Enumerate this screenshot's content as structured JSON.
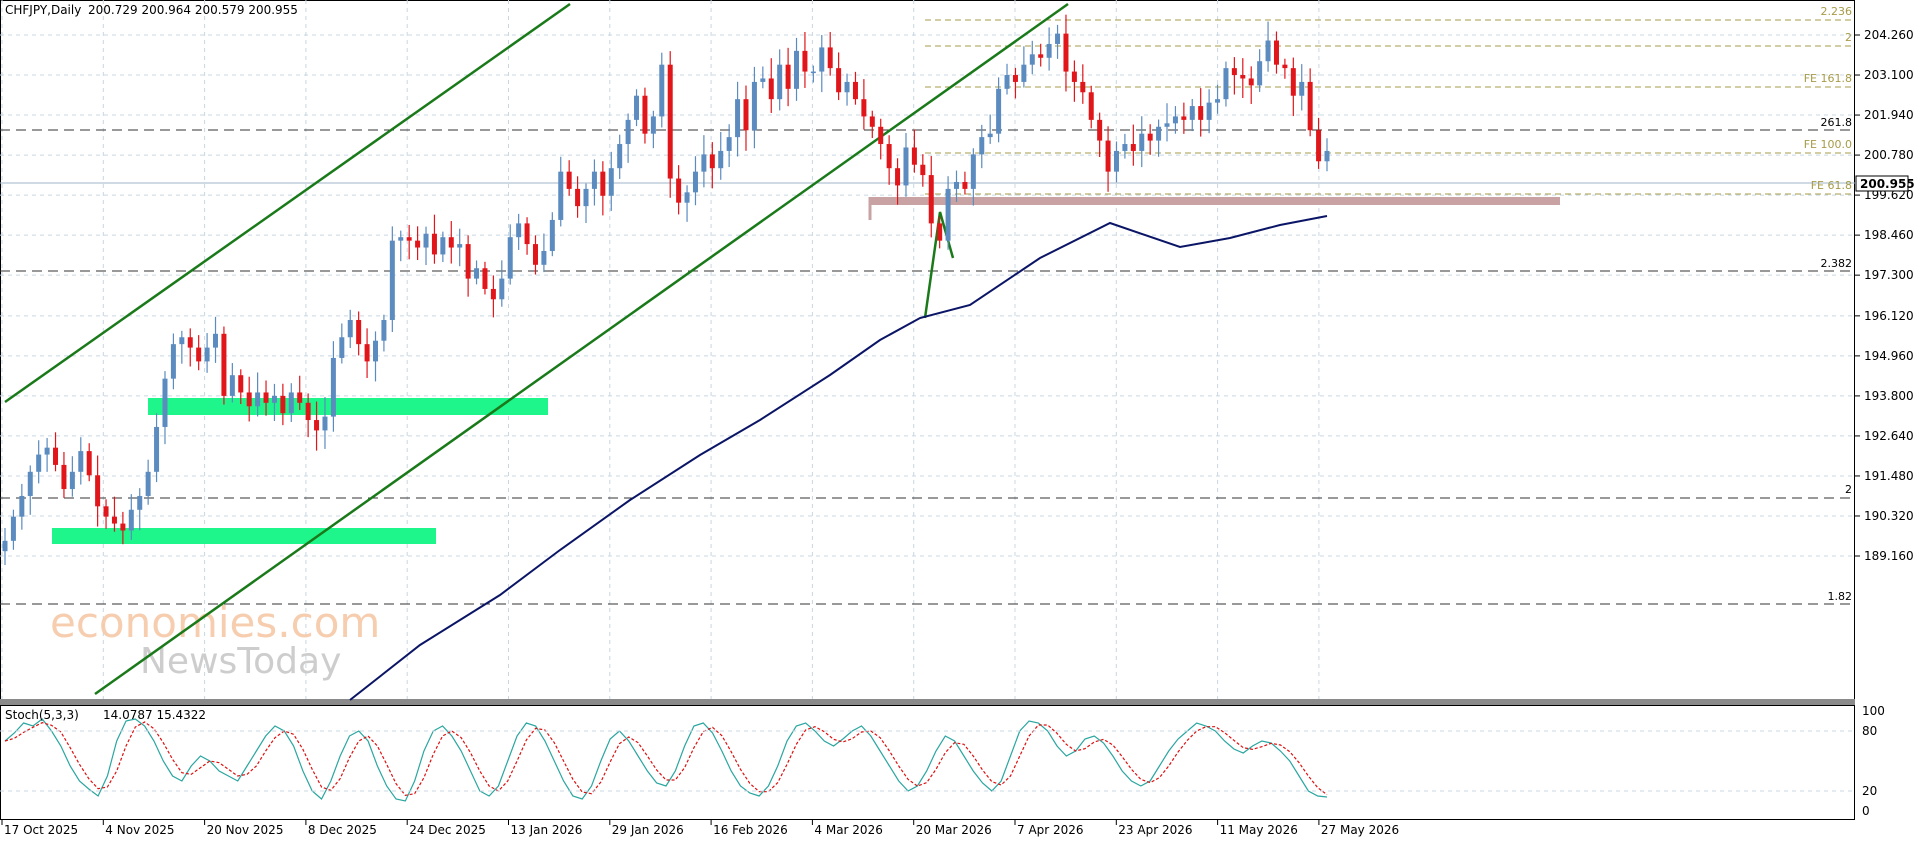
{
  "header": {
    "symbol": "CHFJPY,Daily",
    "ohlc": "200.729 200.964 200.579 200.955"
  },
  "watermark": {
    "line1": "economies.com",
    "line2": "NewsToday"
  },
  "colors": {
    "bull": "#5b8bbf",
    "bear": "#e0161b",
    "ma": "#0b1566",
    "channel": "#1a7a1a",
    "zone": "#1ef58a",
    "resistance": "#c9a3a3",
    "fib": "#a79b48",
    "dashed": "#333333",
    "price_tag": "#ffffff"
  },
  "chart_data": [
    {
      "type": "candlestick",
      "instrument": "CHFJPY",
      "timeframe": "Daily",
      "last_price": "200.955",
      "y_ticks": [
        "204.260",
        "203.100",
        "201.940",
        "200.780",
        "199.620",
        "198.460",
        "197.300",
        "196.120",
        "194.960",
        "193.800",
        "192.640",
        "191.480",
        "190.320",
        "189.160"
      ],
      "x_ticks": [
        "17 Oct 2025",
        "4 Nov 2025",
        "20 Nov 2025",
        "8 Dec 2025",
        "24 Dec 2025",
        "13 Jan 2026",
        "29 Jan 2026",
        "16 Feb 2026",
        "4 Mar 2026",
        "20 Mar 2026",
        "7 Apr 2026",
        "23 Apr 2026",
        "11 May 2026",
        "27 May 2026"
      ],
      "ylim": [
        188.6,
        205.4
      ],
      "closes": [
        189.6,
        190.3,
        190.9,
        191.6,
        192.1,
        192.3,
        191.8,
        191.1,
        191.6,
        192.2,
        191.5,
        190.6,
        190.3,
        190.1,
        189.9,
        190.5,
        190.9,
        191.6,
        192.9,
        194.3,
        195.3,
        195.5,
        195.2,
        194.8,
        195.2,
        195.6,
        193.8,
        194.4,
        193.9,
        193.5,
        193.9,
        193.6,
        193.8,
        193.3,
        193.9,
        193.6,
        193.1,
        192.8,
        193.2,
        194.9,
        195.5,
        196.0,
        195.3,
        194.8,
        195.4,
        196.0,
        198.3,
        198.4,
        198.3,
        198.1,
        198.5,
        197.9,
        198.4,
        198.1,
        198.2,
        197.2,
        197.5,
        196.9,
        196.6,
        197.2,
        198.4,
        198.8,
        198.2,
        197.6,
        198.0,
        198.9,
        200.3,
        199.8,
        199.3,
        199.8,
        200.3,
        199.6,
        200.4,
        201.1,
        201.8,
        202.5,
        201.4,
        201.9,
        203.4,
        200.1,
        199.4,
        199.7,
        200.3,
        200.8,
        200.4,
        200.9,
        201.3,
        202.4,
        201.5,
        202.9,
        203.0,
        202.4,
        203.4,
        202.7,
        203.8,
        203.2,
        203.2,
        203.9,
        203.3,
        202.6,
        202.9,
        202.4,
        201.9,
        201.6,
        201.1,
        200.4,
        199.9,
        201.0,
        200.5,
        200.2,
        198.8,
        198.3,
        199.8,
        200.0,
        199.8,
        200.8,
        201.3,
        201.4,
        202.7,
        203.1,
        202.9,
        203.4,
        203.7,
        203.6,
        204.0,
        204.3,
        203.2,
        202.9,
        202.6,
        201.8,
        201.2,
        200.3,
        200.9,
        201.1,
        200.9,
        201.4,
        201.2,
        201.6,
        201.7,
        201.9,
        201.8,
        202.2,
        201.8,
        202.3,
        202.4,
        203.3,
        203.1,
        203.0,
        202.8,
        203.5,
        204.1,
        203.4,
        203.3,
        202.5,
        202.9,
        201.5,
        200.6,
        200.9
      ]
    },
    {
      "type": "line",
      "name": "Stoch(5,3,3)",
      "values_label": "14.0787 15.4322",
      "y_ticks": [
        "100",
        "80",
        "20",
        "0"
      ],
      "ylim": [
        0,
        100
      ]
    }
  ],
  "annotations": {
    "fib_right": [
      "2.236",
      "2",
      "FE 161.8",
      "261.8",
      "FE 100.0",
      "FE 61.8",
      "2.382",
      "2",
      "1.82"
    ]
  }
}
